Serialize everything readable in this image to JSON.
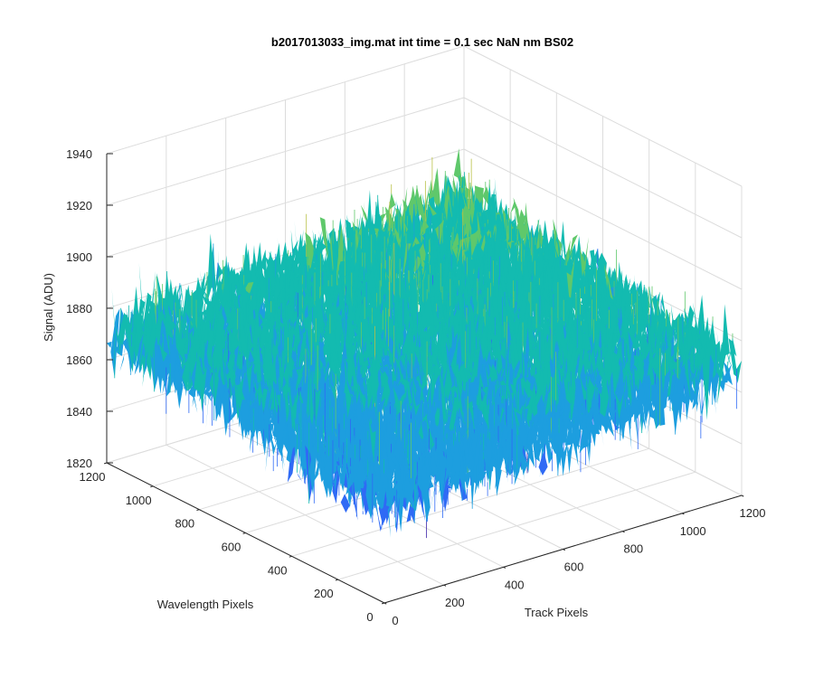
{
  "chart_data": {
    "type": "surface",
    "title": "b2017013033_img.mat int time = 0.1 sec  NaN nm BS02",
    "xlabel": "Track Pixels",
    "ylabel": "Wavelength Pixels",
    "zlabel": "Signal (ADU)",
    "xlim": [
      0,
      1200
    ],
    "ylim": [
      0,
      1200
    ],
    "zlim": [
      1820,
      1940
    ],
    "xticks": [
      "0",
      "200",
      "400",
      "600",
      "800",
      "1000",
      "1200"
    ],
    "yticks": [
      "0",
      "200",
      "400",
      "600",
      "800",
      "1000",
      "1200"
    ],
    "zticks": [
      "1820",
      "1840",
      "1860",
      "1880",
      "1900",
      "1920",
      "1940"
    ],
    "grid": true,
    "box": false,
    "colormap": "parula",
    "colors": [
      "#3e26a8",
      "#2f6af5",
      "#1d9edf",
      "#13bbb0",
      "#5fc86b",
      "#b8c045",
      "#f3d131",
      "#f9fb0e"
    ],
    "data_range": [
      1830,
      1935
    ],
    "mean_signal": 1870,
    "trend": "signal rises gradually from the low-track, low-wavelength corner toward the high-track, high-wavelength corner, with dense pixel-level noise"
  }
}
